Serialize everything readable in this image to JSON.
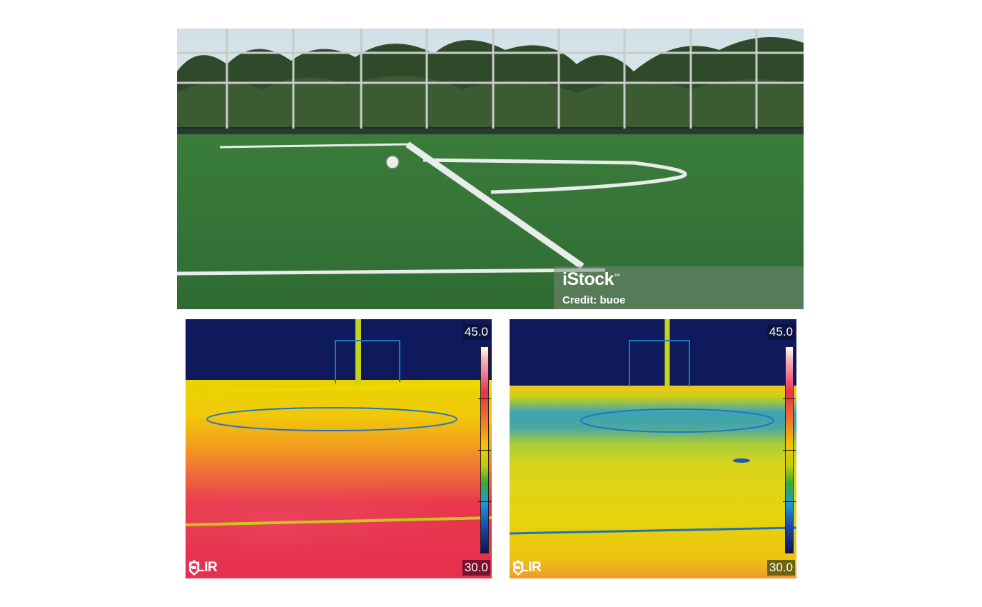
{
  "photo": {
    "watermark_logo": "iStock",
    "watermark_tm": "™",
    "watermark_credit": "Credit: buoe"
  },
  "thermal_left": {
    "scale_max": "45.0",
    "scale_min": "30.0",
    "brand": "FLIR"
  },
  "thermal_right": {
    "scale_max": "45.0",
    "scale_min": "30.0",
    "brand": "FLIR"
  },
  "colors": {
    "turf_green": "#357538",
    "thermal_background": "#0e1a5c",
    "hot_red": "#e5304f",
    "warm_yellow": "#e6d30a",
    "cool_blue": "#1e9ad0"
  },
  "icons": [
    "flir-logo-icon"
  ]
}
